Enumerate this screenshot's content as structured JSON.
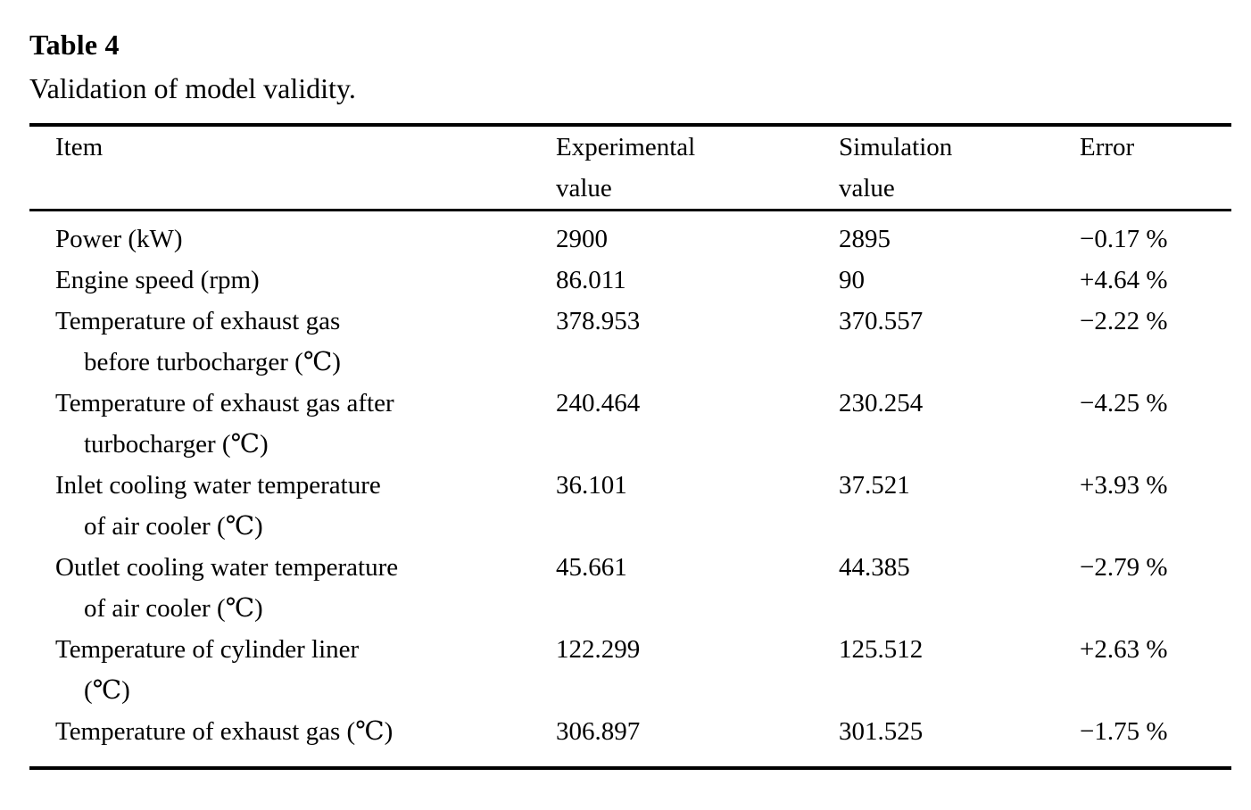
{
  "page": {
    "title": "Table 4",
    "caption": "Validation of model validity."
  },
  "colors": {
    "text": "#000000",
    "rule": "#000000",
    "background": "#ffffff"
  },
  "table": {
    "headers": [
      {
        "line1": "Item",
        "line2": ""
      },
      {
        "line1": "Experimental",
        "line2": "value"
      },
      {
        "line1": "Simulation",
        "line2": "value"
      },
      {
        "line1": "Error",
        "line2": ""
      }
    ],
    "rows": [
      {
        "item_line1": "Power (kW)",
        "item_line2": "",
        "experimental": "2900",
        "simulation": "2895",
        "error": "−0.17 %"
      },
      {
        "item_line1": "Engine speed (rpm)",
        "item_line2": "",
        "experimental": "86.011",
        "simulation": "90",
        "error": "+4.64 %"
      },
      {
        "item_line1": "Temperature of exhaust gas",
        "item_line2": "before turbocharger (℃)",
        "experimental": "378.953",
        "simulation": "370.557",
        "error": "−2.22 %"
      },
      {
        "item_line1": "Temperature of exhaust gas after",
        "item_line2": "turbocharger (℃)",
        "experimental": "240.464",
        "simulation": "230.254",
        "error": "−4.25 %"
      },
      {
        "item_line1": "Inlet cooling water temperature",
        "item_line2": "of air cooler (℃)",
        "experimental": "36.101",
        "simulation": "37.521",
        "error": "+3.93 %"
      },
      {
        "item_line1": "Outlet cooling water temperature",
        "item_line2": "of air cooler (℃)",
        "experimental": "45.661",
        "simulation": "44.385",
        "error": "−2.79 %"
      },
      {
        "item_line1": "Temperature of cylinder liner",
        "item_line2": "(℃)",
        "experimental": "122.299",
        "simulation": "125.512",
        "error": "+2.63 %"
      },
      {
        "item_line1": "Temperature of exhaust gas (℃)",
        "item_line2": "",
        "experimental": "306.897",
        "simulation": "301.525",
        "error": "−1.75 %"
      }
    ]
  }
}
